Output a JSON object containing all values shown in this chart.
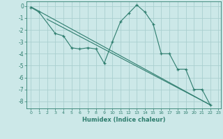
{
  "xlabel": "Humidex (Indice chaleur)",
  "bg_color": "#cce8e8",
  "line_color": "#2e7d6e",
  "grid_color": "#aacfcf",
  "x_min": -0.5,
  "x_max": 23.3,
  "y_min": -8.6,
  "y_max": 0.4,
  "curve_x": [
    0,
    1,
    3,
    4,
    5,
    6,
    7,
    8,
    9,
    10,
    11,
    12,
    13,
    14,
    15,
    16,
    17,
    18,
    19,
    20,
    21,
    22
  ],
  "curve_y": [
    -0.1,
    -0.5,
    -2.3,
    -2.5,
    -3.5,
    -3.6,
    -3.5,
    -3.6,
    -4.8,
    -3.0,
    -1.3,
    -0.6,
    0.1,
    -0.5,
    -1.5,
    -4.0,
    -4.0,
    -5.3,
    -5.3,
    -7.0,
    -7.0,
    -8.3
  ],
  "line1_x": [
    0,
    22
  ],
  "line1_y": [
    -0.05,
    -8.3
  ],
  "line2_x": [
    2,
    22
  ],
  "line2_y": [
    -1.1,
    -8.3
  ],
  "xticks": [
    0,
    1,
    2,
    3,
    4,
    5,
    6,
    7,
    8,
    9,
    10,
    11,
    12,
    13,
    14,
    15,
    16,
    17,
    18,
    19,
    20,
    21,
    22,
    23
  ],
  "yticks": [
    0,
    -1,
    -2,
    -3,
    -4,
    -5,
    -6,
    -7,
    -8
  ]
}
